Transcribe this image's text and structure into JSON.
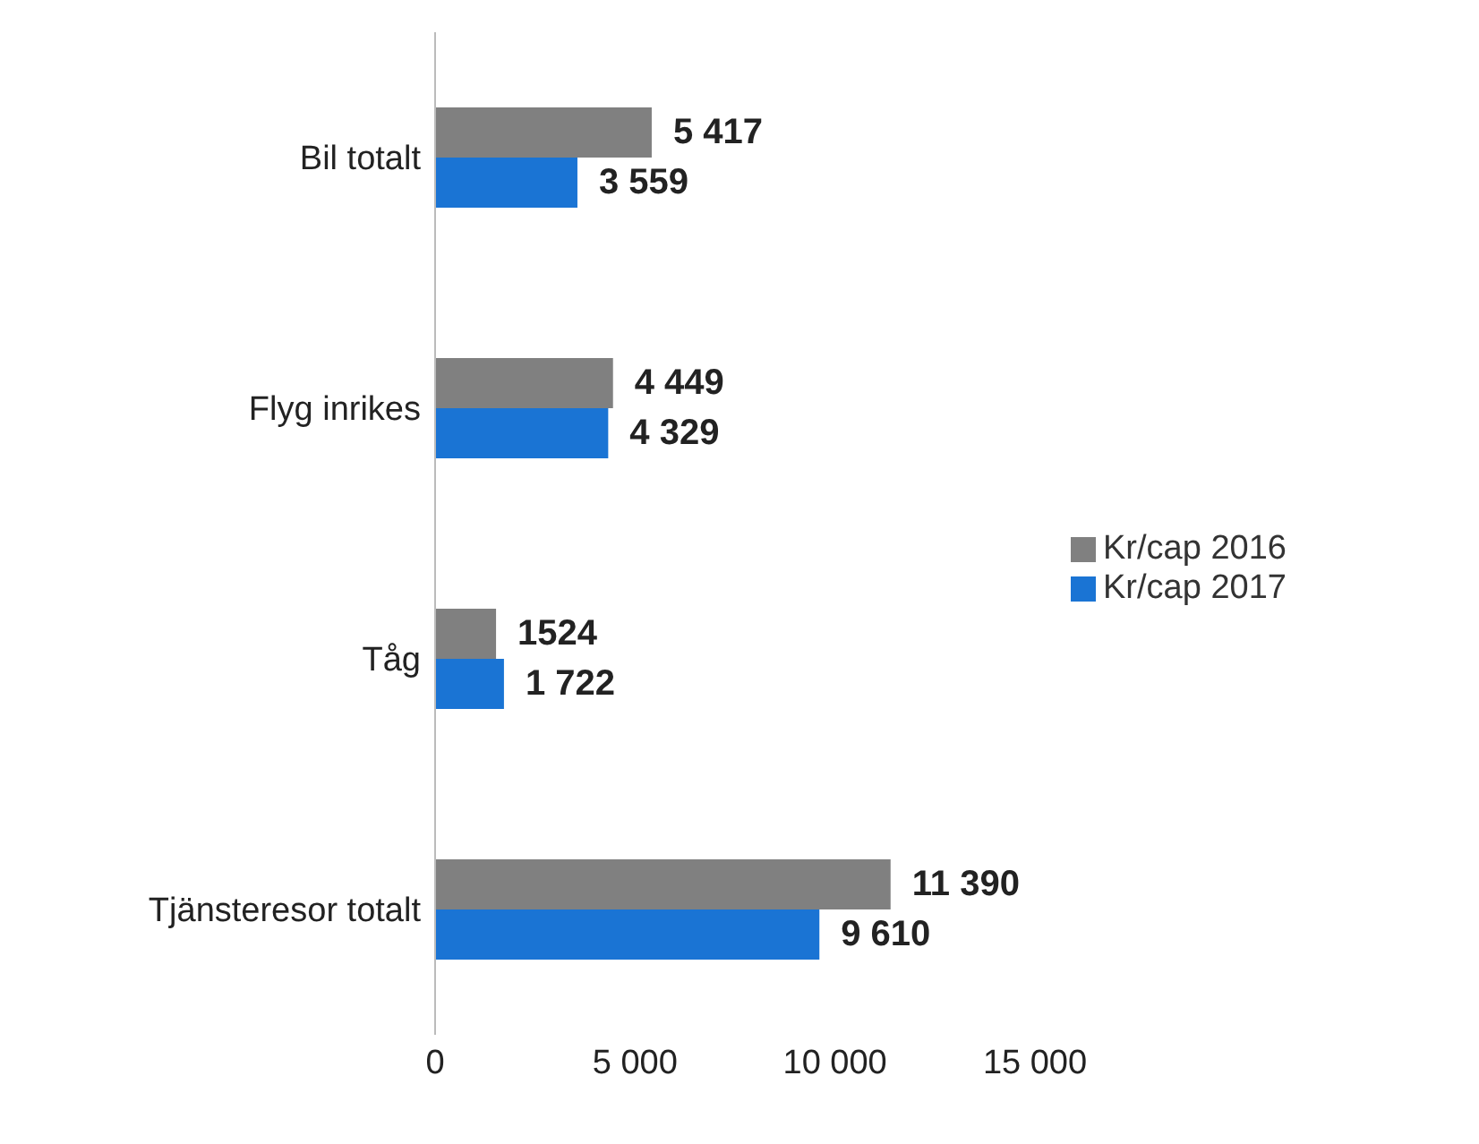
{
  "chart_data": {
    "type": "bar",
    "orientation": "horizontal",
    "categories": [
      "Bil totalt",
      "Flyg inrikes",
      "Tåg",
      "Tjänsteresor totalt"
    ],
    "series": [
      {
        "name": "Kr/cap 2016",
        "color": "#808080",
        "values": [
          5417,
          4449,
          1524,
          11390
        ],
        "value_labels": [
          "5 417",
          "4 449",
          "1524",
          "11 390"
        ]
      },
      {
        "name": "Kr/cap 2017",
        "color": "#1a74d4",
        "values": [
          3559,
          4329,
          1722,
          9610
        ],
        "value_labels": [
          "3 559",
          "4 329",
          "1 722",
          "9 610"
        ]
      }
    ],
    "xlim": [
      0,
      15000
    ],
    "xticks": [
      0,
      {
        "value": 5000,
        "label": "5 000"
      },
      {
        "value": 10000,
        "label": "10 000"
      },
      {
        "value": 15000,
        "label": "15 000"
      }
    ],
    "legend": "right"
  }
}
